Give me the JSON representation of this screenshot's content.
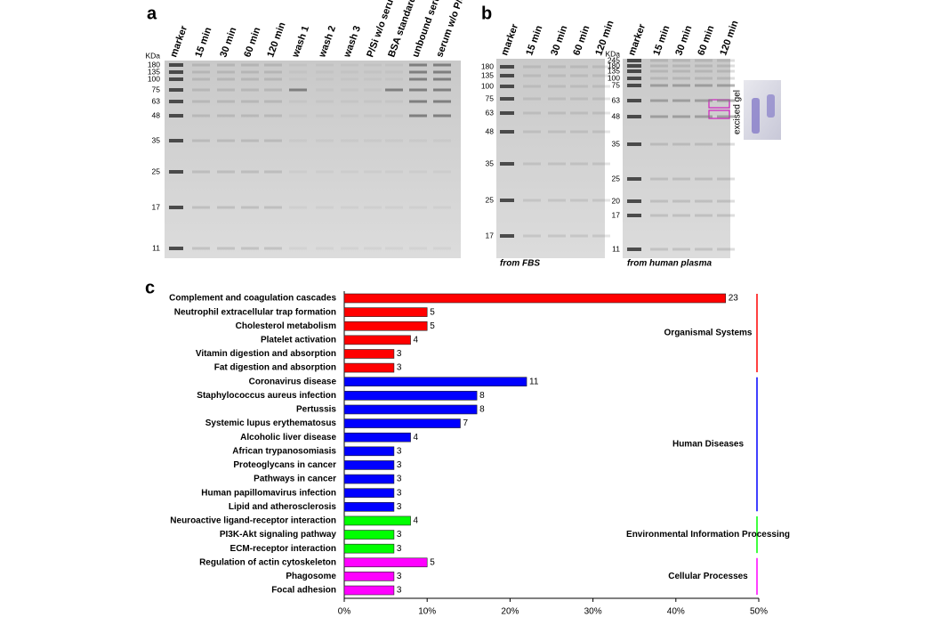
{
  "panel_a": {
    "letter": "a",
    "unit": "KDa",
    "lanes": [
      "marker",
      "15 min",
      "30 min",
      "60 min",
      "120 min",
      "wash 1",
      "wash 2",
      "wash 3",
      "P/Si w/o serum",
      "BSA standard",
      "unbound serum",
      "serum w/o P/Si"
    ],
    "mw": [
      180,
      135,
      100,
      75,
      63,
      48,
      35,
      25,
      17,
      11
    ]
  },
  "panel_b": {
    "letter": "b",
    "inset_label": "excised gel",
    "gels": [
      {
        "lanes": [
          "marker",
          "15 min",
          "30 min",
          "60 min",
          "120 min"
        ],
        "mw": [
          180,
          135,
          100,
          75,
          63,
          48,
          35,
          25,
          17
        ],
        "caption": "from FBS"
      },
      {
        "unit": "KDa",
        "lanes": [
          "marker",
          "15 min",
          "30 min",
          "60 min",
          "120 min"
        ],
        "mw": [
          245,
          180,
          135,
          100,
          75,
          63,
          48,
          35,
          25,
          20,
          17,
          11
        ],
        "caption": "from human plasma"
      }
    ]
  },
  "panel_c": {
    "letter": "c"
  },
  "chart_data": {
    "type": "bar",
    "orientation": "horizontal",
    "xlim": [
      0,
      50
    ],
    "xticks": [
      {
        "value": 0,
        "label": "0%"
      },
      {
        "value": 10,
        "label": "10%"
      },
      {
        "value": 20,
        "label": "20%"
      },
      {
        "value": 30,
        "label": "30%"
      },
      {
        "value": 40,
        "label": "40%"
      },
      {
        "value": 50,
        "label": "50%"
      }
    ],
    "series": [
      {
        "name": "Organismal Systems",
        "color": "#ff0000",
        "categories": [
          "Complement and coagulation cascades",
          "Neutrophil extracellular trap formation",
          "Cholesterol metabolism",
          "Platelet activation",
          "Vitamin digestion and absorption",
          "Fat digestion and absorption"
        ],
        "values": [
          46,
          10,
          10,
          8,
          6,
          6
        ],
        "counts": [
          23,
          5,
          5,
          4,
          3,
          3
        ]
      },
      {
        "name": "Human Diseases",
        "color": "#0000ff",
        "categories": [
          "Coronavirus disease",
          "Staphylococcus aureus infection",
          "Pertussis",
          "Systemic lupus erythematosus",
          "Alcoholic liver disease",
          "African trypanosomiasis",
          "Proteoglycans in cancer",
          "Pathways in cancer",
          "Human papillomavirus infection",
          "Lipid and atherosclerosis"
        ],
        "values": [
          22,
          16,
          16,
          14,
          8,
          6,
          6,
          6,
          6,
          6
        ],
        "counts": [
          11,
          8,
          8,
          7,
          4,
          3,
          3,
          3,
          3,
          3
        ]
      },
      {
        "name": "Environmental Information Processing",
        "color": "#00ff00",
        "categories": [
          "Neuroactive ligand-receptor interaction",
          "PI3K-Akt signaling pathway",
          "ECM-receptor interaction"
        ],
        "values": [
          8,
          6,
          6
        ],
        "counts": [
          4,
          3,
          3
        ]
      },
      {
        "name": "Cellular Processes",
        "color": "#ff00ff",
        "categories": [
          "Regulation of actin cytoskeleton",
          "Phagosome",
          "Focal adhesion"
        ],
        "values": [
          10,
          6,
          6
        ],
        "counts": [
          5,
          3,
          3
        ]
      }
    ]
  }
}
